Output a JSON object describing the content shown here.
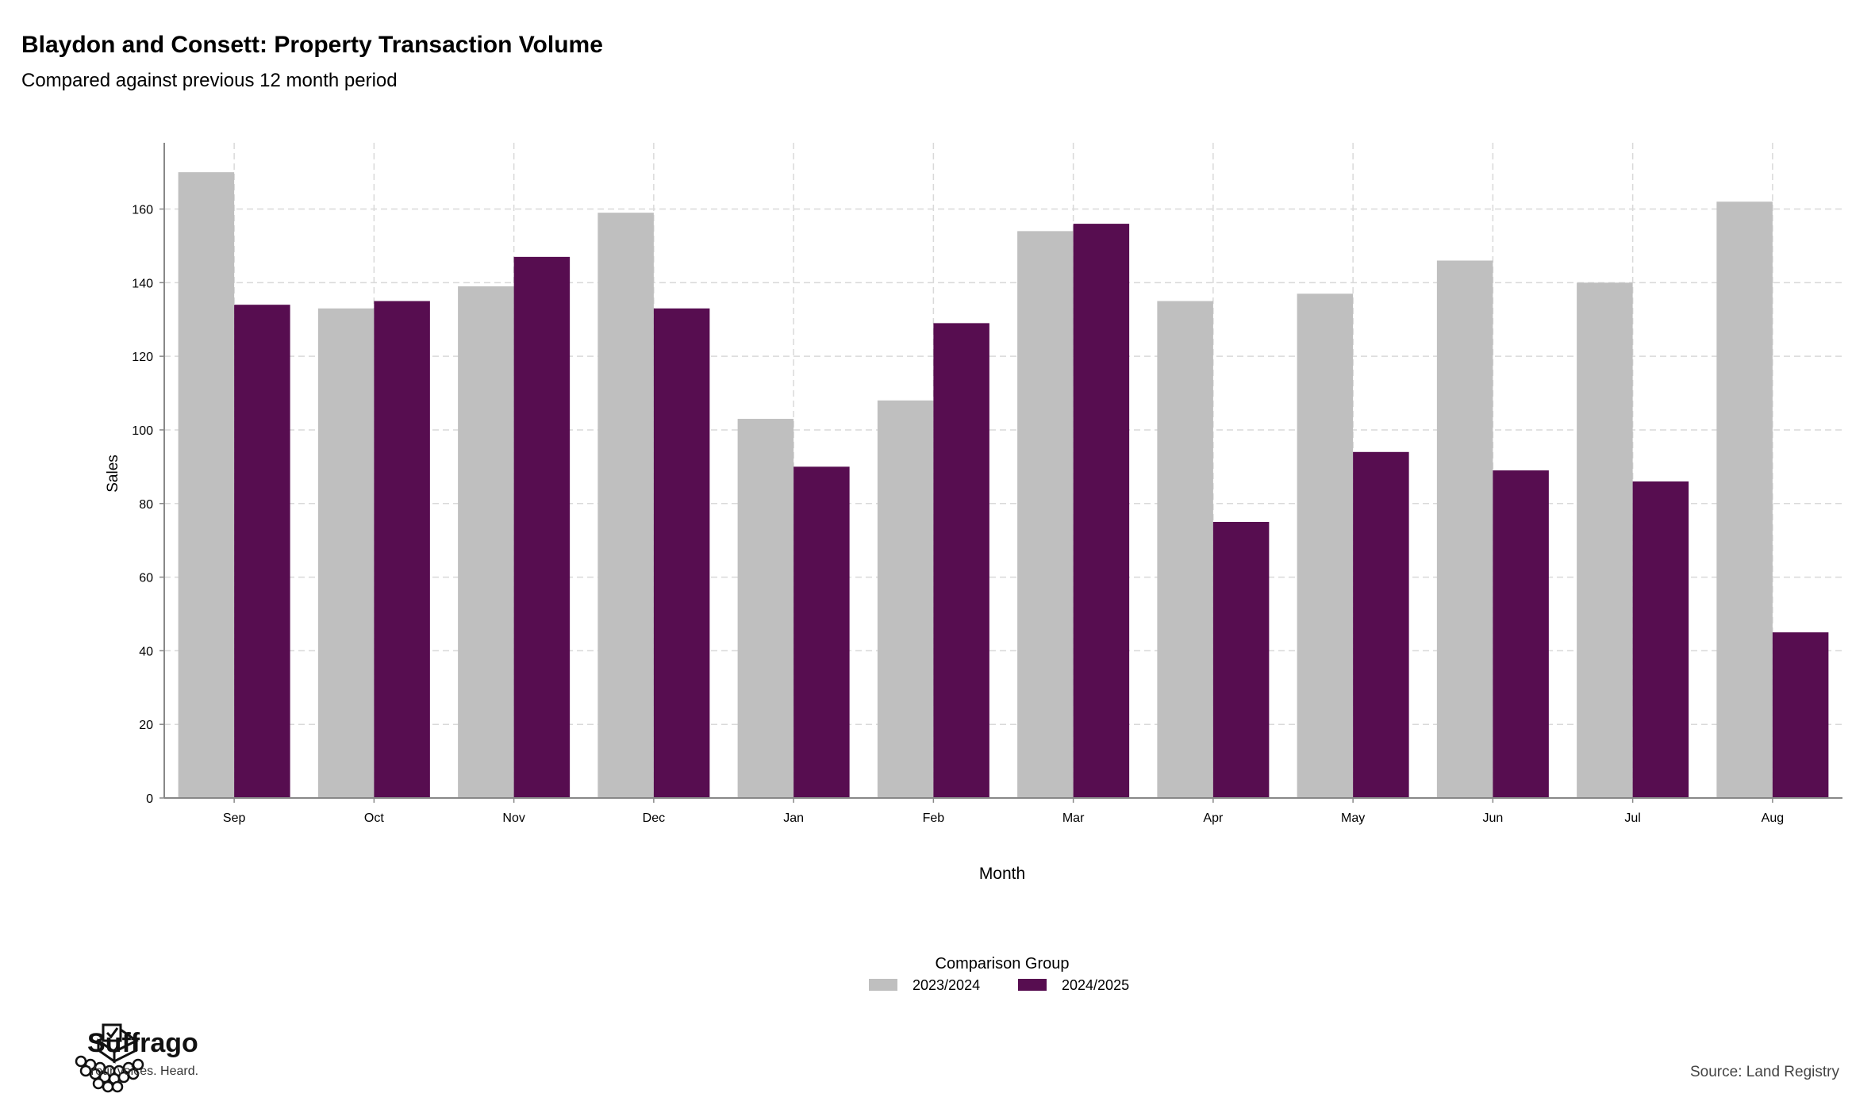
{
  "page": {
    "title": "Blaydon and Consett: Property Transaction Volume",
    "subtitle": "Compared against previous 12 month period",
    "source": "Source: Land Registry",
    "brand_name": "Suffrago",
    "brand_tagline": "Your voices. Heard."
  },
  "colors": {
    "series_prev": "#bfbfbf",
    "series_curr": "#570d50",
    "grid": "#d9d9d9",
    "axis": "#888888"
  },
  "chart_data": {
    "type": "bar",
    "categories": [
      "Sep",
      "Oct",
      "Nov",
      "Dec",
      "Jan",
      "Feb",
      "Mar",
      "Apr",
      "May",
      "Jun",
      "Jul",
      "Aug"
    ],
    "series": [
      {
        "name": "2023/2024",
        "values": [
          170,
          133,
          139,
          159,
          103,
          108,
          154,
          135,
          137,
          146,
          140,
          162
        ]
      },
      {
        "name": "2024/2025",
        "values": [
          134,
          135,
          147,
          133,
          90,
          129,
          156,
          75,
          94,
          89,
          86,
          45
        ]
      }
    ],
    "xlabel": "Month",
    "ylabel": "Sales",
    "ylim": [
      0,
      178
    ],
    "yticks": [
      0,
      20,
      40,
      60,
      80,
      100,
      120,
      140,
      160
    ],
    "legend_title": "Comparison Group",
    "legend_position": "bottom",
    "grid": true
  }
}
